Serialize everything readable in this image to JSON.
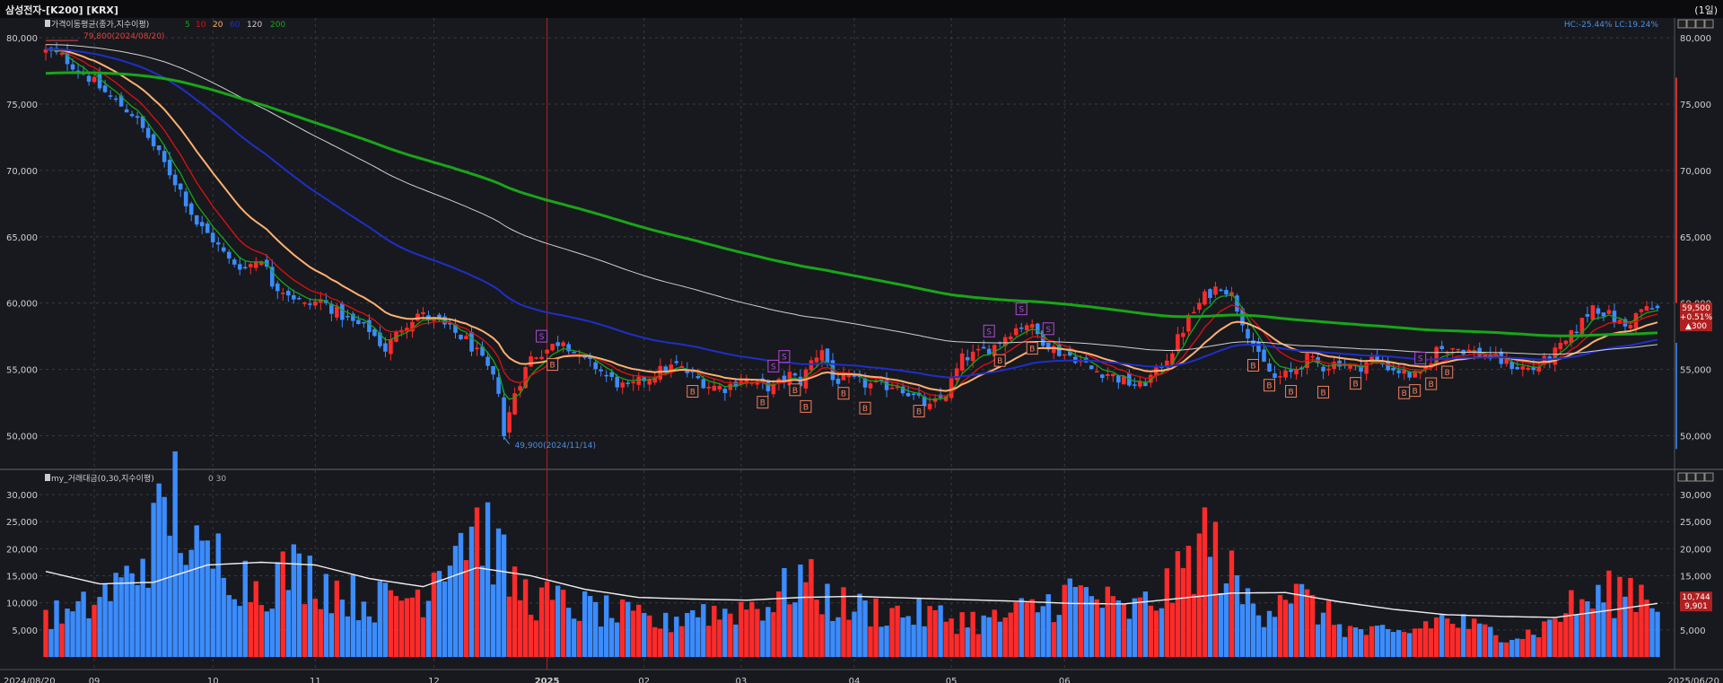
{
  "window": {
    "title": "삼성전자-[K200] [KRX]",
    "period": "(1일)"
  },
  "price_panel": {
    "legend_title": "가격이동평균(종가,지수이평)",
    "legend_periods": [
      {
        "label": "5",
        "color": "#16a616"
      },
      {
        "label": "10",
        "color": "#e01010"
      },
      {
        "label": "20",
        "color": "#ffb070"
      },
      {
        "label": "60",
        "color": "#1e2fc8"
      },
      {
        "label": "120",
        "color": "#d0d0d0"
      },
      {
        "label": "200",
        "color": "#19a519"
      }
    ],
    "hc_lc": "HC:-25.44%  LC:19.24%",
    "max_label": "79,800(2024/08/20)",
    "min_label": "49,900(2024/11/14)",
    "current_price": "59,500",
    "current_change_pct": "+0.51%",
    "current_change": "▲300",
    "y_ticks": [
      "80,000",
      "75,000",
      "70,000",
      "65,000",
      "60,000",
      "55,000",
      "50,000"
    ]
  },
  "volume_panel": {
    "legend_title": "my_거래대금(0,30,지수이평)",
    "legend_extra": "0  30",
    "y_ticks": [
      "30,000",
      "25,000",
      "20,000",
      "15,000",
      "10,000",
      "5,000"
    ],
    "current_value_1": "10,744",
    "current_value_2": "9,901"
  },
  "x_axis": {
    "start_label": "2024/08/20",
    "end_label": "2025/06/20",
    "month_labels": [
      "09",
      "10",
      "11",
      "12",
      "2025",
      "02",
      "03",
      "04",
      "05",
      "06"
    ]
  },
  "colors": {
    "background": "#18191e",
    "up": "#ff2a2a",
    "down": "#3b8cff",
    "grid": "#3a3a3a",
    "vertical_marker": "#b02020"
  },
  "chart_data": {
    "type": "candlestick",
    "title": "삼성전자-[K200] [KRX]",
    "x_start": "2024/08/20",
    "x_end": "2025/06/20",
    "ylim": [
      48000,
      81500
    ],
    "close_anchors": [
      [
        0,
        79000
      ],
      [
        3,
        78600
      ],
      [
        8,
        77000
      ],
      [
        12,
        75500
      ],
      [
        16,
        74300
      ],
      [
        19,
        72500
      ],
      [
        22,
        70500
      ],
      [
        25,
        68500
      ],
      [
        28,
        66000
      ],
      [
        31,
        64800
      ],
      [
        34,
        63200
      ],
      [
        37,
        62700
      ],
      [
        40,
        63500
      ],
      [
        42,
        61500
      ],
      [
        45,
        60800
      ],
      [
        48,
        59800
      ],
      [
        51,
        60200
      ],
      [
        54,
        59300
      ],
      [
        57,
        58500
      ],
      [
        60,
        58000
      ],
      [
        63,
        56500
      ],
      [
        66,
        58200
      ],
      [
        69,
        59200
      ],
      [
        72,
        58700
      ],
      [
        75,
        58000
      ],
      [
        78,
        57200
      ],
      [
        80,
        56200
      ],
      [
        82,
        55000
      ],
      [
        84,
        53500
      ],
      [
        85,
        50000
      ],
      [
        87,
        53300
      ],
      [
        90,
        55900
      ],
      [
        93,
        56500
      ],
      [
        96,
        57300
      ],
      [
        99,
        55800
      ],
      [
        102,
        55200
      ],
      [
        105,
        54200
      ],
      [
        108,
        53500
      ],
      [
        111,
        54300
      ],
      [
        114,
        54900
      ],
      [
        117,
        55300
      ],
      [
        120,
        54500
      ],
      [
        123,
        53800
      ],
      [
        126,
        53600
      ],
      [
        129,
        54300
      ],
      [
        132,
        53800
      ],
      [
        135,
        53600
      ],
      [
        138,
        54600
      ],
      [
        140,
        54000
      ],
      [
        142,
        55600
      ],
      [
        144,
        56600
      ],
      [
        146,
        54200
      ],
      [
        149,
        54200
      ],
      [
        152,
        53900
      ],
      [
        155,
        53700
      ],
      [
        158,
        53900
      ],
      [
        161,
        52900
      ],
      [
        164,
        52100
      ],
      [
        167,
        53200
      ],
      [
        170,
        55800
      ],
      [
        173,
        56200
      ],
      [
        176,
        56800
      ],
      [
        179,
        57900
      ],
      [
        182,
        58500
      ],
      [
        185,
        57200
      ],
      [
        188,
        56300
      ],
      [
        191,
        55900
      ],
      [
        194,
        55000
      ],
      [
        197,
        54700
      ],
      [
        200,
        54100
      ],
      [
        203,
        53700
      ],
      [
        206,
        54800
      ],
      [
        209,
        56500
      ],
      [
        212,
        58800
      ],
      [
        215,
        60500
      ],
      [
        218,
        61400
      ],
      [
        220,
        60600
      ],
      [
        222,
        58700
      ],
      [
        225,
        55900
      ],
      [
        228,
        54300
      ],
      [
        231,
        54700
      ],
      [
        234,
        55800
      ],
      [
        237,
        55200
      ],
      [
        240,
        55600
      ],
      [
        243,
        55000
      ],
      [
        246,
        55800
      ],
      [
        249,
        55200
      ],
      [
        252,
        54700
      ],
      [
        255,
        54400
      ],
      [
        258,
        56500
      ],
      [
        261,
        56700
      ],
      [
        264,
        56400
      ],
      [
        267,
        56100
      ],
      [
        270,
        55600
      ],
      [
        273,
        55200
      ],
      [
        276,
        55000
      ],
      [
        279,
        55900
      ],
      [
        282,
        57000
      ],
      [
        285,
        58600
      ],
      [
        287,
        59800
      ],
      [
        290,
        59100
      ],
      [
        293,
        58200
      ],
      [
        296,
        59500
      ],
      [
        299,
        59500
      ]
    ],
    "candle_count": 300,
    "moving_averages": [
      {
        "name": "5",
        "color": "#16a616"
      },
      {
        "name": "10",
        "color": "#e01010"
      },
      {
        "name": "20",
        "color": "#ffb070"
      },
      {
        "name": "60",
        "color": "#1e2fc8"
      },
      {
        "name": "120",
        "color": "#d0d0d0"
      },
      {
        "name": "200",
        "color": "#19a519"
      }
    ],
    "volume": {
      "ylim": [
        0,
        33000
      ],
      "anchors": [
        [
          0,
          8000
        ],
        [
          5,
          7500
        ],
        [
          10,
          11000
        ],
        [
          15,
          14000
        ],
        [
          20,
          22000
        ],
        [
          24,
          30000
        ],
        [
          27,
          19000
        ],
        [
          30,
          17000
        ],
        [
          33,
          19500
        ],
        [
          36,
          15000
        ],
        [
          40,
          13000
        ],
        [
          45,
          16000
        ],
        [
          50,
          15000
        ],
        [
          55,
          12000
        ],
        [
          60,
          10000
        ],
        [
          65,
          11000
        ],
        [
          70,
          12000
        ],
        [
          75,
          22000
        ],
        [
          80,
          25000
        ],
        [
          83,
          21000
        ],
        [
          86,
          14000
        ],
        [
          90,
          11000
        ],
        [
          95,
          10000
        ],
        [
          100,
          9000
        ],
        [
          105,
          8000
        ],
        [
          110,
          7000
        ],
        [
          115,
          6000
        ],
        [
          120,
          9000
        ],
        [
          125,
          8000
        ],
        [
          130,
          9500
        ],
        [
          135,
          10000
        ],
        [
          140,
          15000
        ],
        [
          143,
          12000
        ],
        [
          146,
          10000
        ],
        [
          150,
          9000
        ],
        [
          155,
          8500
        ],
        [
          160,
          8000
        ],
        [
          165,
          7500
        ],
        [
          170,
          7000
        ],
        [
          175,
          6500
        ],
        [
          180,
          8000
        ],
        [
          185,
          9500
        ],
        [
          190,
          12000
        ],
        [
          195,
          11000
        ],
        [
          200,
          8000
        ],
        [
          205,
          10000
        ],
        [
          210,
          14000
        ],
        [
          215,
          22000
        ],
        [
          218,
          18000
        ],
        [
          222,
          11000
        ],
        [
          226,
          9000
        ],
        [
          230,
          13000
        ],
        [
          234,
          10000
        ],
        [
          238,
          7500
        ],
        [
          242,
          5000
        ],
        [
          246,
          4500
        ],
        [
          250,
          4000
        ],
        [
          254,
          5000
        ],
        [
          258,
          7000
        ],
        [
          262,
          6500
        ],
        [
          266,
          5000
        ],
        [
          270,
          4500
        ],
        [
          274,
          4000
        ],
        [
          278,
          5500
        ],
        [
          282,
          9000
        ],
        [
          286,
          10000
        ],
        [
          290,
          11500
        ],
        [
          294,
          13000
        ],
        [
          299,
          10700
        ]
      ],
      "ma_anchors": [
        [
          0,
          15800
        ],
        [
          10,
          13500
        ],
        [
          20,
          13800
        ],
        [
          30,
          17000
        ],
        [
          40,
          17500
        ],
        [
          50,
          17000
        ],
        [
          60,
          14500
        ],
        [
          70,
          13000
        ],
        [
          80,
          16500
        ],
        [
          90,
          15000
        ],
        [
          100,
          12500
        ],
        [
          110,
          11000
        ],
        [
          120,
          10700
        ],
        [
          130,
          10500
        ],
        [
          140,
          11000
        ],
        [
          150,
          11200
        ],
        [
          160,
          10900
        ],
        [
          170,
          10600
        ],
        [
          180,
          10300
        ],
        [
          190,
          9900
        ],
        [
          200,
          9800
        ],
        [
          210,
          10800
        ],
        [
          220,
          11800
        ],
        [
          230,
          11900
        ],
        [
          240,
          10200
        ],
        [
          250,
          8800
        ],
        [
          260,
          7800
        ],
        [
          270,
          7500
        ],
        [
          280,
          7300
        ],
        [
          290,
          8600
        ],
        [
          299,
          9900
        ]
      ]
    },
    "signals": [
      {
        "idx": 92,
        "type": "S"
      },
      {
        "idx": 94,
        "type": "B"
      },
      {
        "idx": 135,
        "type": "S"
      },
      {
        "idx": 137,
        "type": "S"
      },
      {
        "idx": 139,
        "type": "B"
      },
      {
        "idx": 141,
        "type": "B"
      },
      {
        "idx": 133,
        "type": "B"
      },
      {
        "idx": 120,
        "type": "B"
      },
      {
        "idx": 148,
        "type": "B"
      },
      {
        "idx": 152,
        "type": "B"
      },
      {
        "idx": 162,
        "type": "B"
      },
      {
        "idx": 175,
        "type": "S"
      },
      {
        "idx": 181,
        "type": "S"
      },
      {
        "idx": 186,
        "type": "S"
      },
      {
        "idx": 183,
        "type": "B"
      },
      {
        "idx": 177,
        "type": "B"
      },
      {
        "idx": 224,
        "type": "B"
      },
      {
        "idx": 227,
        "type": "B"
      },
      {
        "idx": 231,
        "type": "B"
      },
      {
        "idx": 237,
        "type": "B"
      },
      {
        "idx": 243,
        "type": "B"
      },
      {
        "idx": 255,
        "type": "S"
      },
      {
        "idx": 252,
        "type": "B"
      },
      {
        "idx": 254,
        "type": "B"
      },
      {
        "idx": 257,
        "type": "B"
      },
      {
        "idx": 260,
        "type": "B"
      }
    ]
  }
}
